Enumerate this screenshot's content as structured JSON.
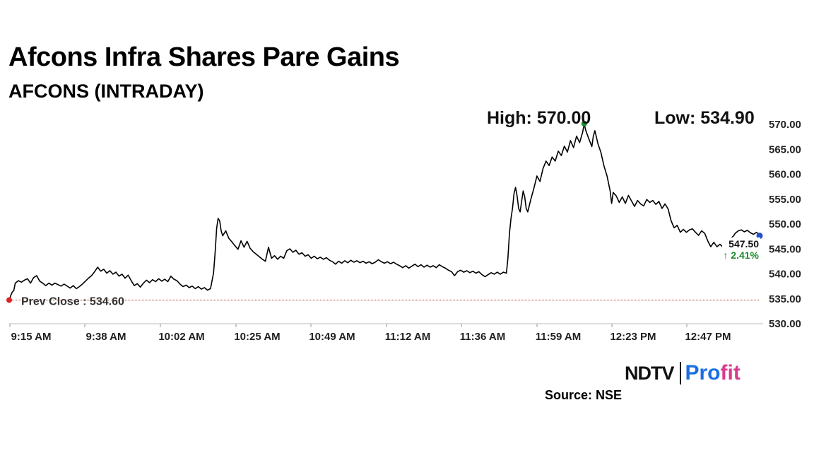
{
  "header": {
    "title": "Afcons Infra Shares Pare Gains",
    "subtitle": "AFCONS (INTRADAY)"
  },
  "chart_data": {
    "type": "line",
    "title": "Afcons Infra Shares Pare Gains",
    "subtitle": "AFCONS (INTRADAY)",
    "xlabel": "",
    "ylabel": "",
    "x_ticks": [
      "9:15 AM",
      "9:38 AM",
      "10:02 AM",
      "10:25 AM",
      "10:49 AM",
      "11:12 AM",
      "11:36 AM",
      "11:59 AM",
      "12:23 PM",
      "12:47 PM"
    ],
    "y_ticks": [
      "530.00",
      "535.00",
      "540.00",
      "545.00",
      "550.00",
      "555.00",
      "560.00",
      "565.00",
      "570.00"
    ],
    "ylim": [
      530,
      570
    ],
    "x_unit": "minutes from 9:15 AM",
    "xlim": [
      0,
      246
    ],
    "grid": false,
    "series": [
      {
        "points": [
          [
            0,
            534.6
          ],
          [
            0.5,
            535.5
          ],
          [
            1,
            536.2
          ],
          [
            1.5,
            536.5
          ],
          [
            2,
            538.0
          ],
          [
            3,
            538.5
          ],
          [
            4,
            538.2
          ],
          [
            5,
            538.6
          ],
          [
            6,
            538.9
          ],
          [
            7,
            538.0
          ],
          [
            8,
            539.1
          ],
          [
            9,
            539.5
          ],
          [
            10,
            538.4
          ],
          [
            11,
            538.0
          ],
          [
            12,
            537.5
          ],
          [
            13,
            538.0
          ],
          [
            14,
            537.6
          ],
          [
            15,
            538.0
          ],
          [
            17,
            537.4
          ],
          [
            18,
            537.8
          ],
          [
            20,
            537.0
          ],
          [
            21,
            537.5
          ],
          [
            22,
            536.9
          ],
          [
            23,
            537.3
          ],
          [
            24,
            537.8
          ],
          [
            25,
            538.4
          ],
          [
            26,
            539.0
          ],
          [
            27,
            539.5
          ],
          [
            28,
            540.3
          ],
          [
            29,
            541.2
          ],
          [
            30,
            540.4
          ],
          [
            31,
            540.8
          ],
          [
            32,
            540.0
          ],
          [
            33,
            540.5
          ],
          [
            34,
            539.8
          ],
          [
            35,
            540.2
          ],
          [
            36,
            539.4
          ],
          [
            37,
            539.8
          ],
          [
            38,
            539.0
          ],
          [
            39,
            539.6
          ],
          [
            40,
            538.5
          ],
          [
            41,
            537.5
          ],
          [
            42,
            537.9
          ],
          [
            43,
            537.2
          ],
          [
            44,
            538.0
          ],
          [
            45,
            538.6
          ],
          [
            46,
            538.1
          ],
          [
            47,
            538.7
          ],
          [
            48,
            538.3
          ],
          [
            49,
            538.9
          ],
          [
            50,
            538.4
          ],
          [
            51,
            538.8
          ],
          [
            52,
            538.3
          ],
          [
            53,
            539.4
          ],
          [
            54,
            538.8
          ],
          [
            55,
            538.5
          ],
          [
            56,
            537.8
          ],
          [
            57,
            537.3
          ],
          [
            58,
            537.6
          ],
          [
            59,
            537.1
          ],
          [
            60,
            537.4
          ],
          [
            61,
            536.9
          ],
          [
            62,
            537.3
          ],
          [
            63,
            536.8
          ],
          [
            64,
            537.1
          ],
          [
            65,
            536.6
          ],
          [
            66,
            536.9
          ],
          [
            67,
            540.0
          ],
          [
            67.5,
            544.0
          ],
          [
            68,
            549.0
          ],
          [
            68.5,
            551.0
          ],
          [
            69,
            550.5
          ],
          [
            69.5,
            548.5
          ],
          [
            70,
            547.5
          ],
          [
            71,
            548.5
          ],
          [
            72,
            547.0
          ],
          [
            73,
            546.3
          ],
          [
            74,
            545.5
          ],
          [
            75,
            544.8
          ],
          [
            76,
            546.5
          ],
          [
            77,
            545.2
          ],
          [
            78,
            546.4
          ],
          [
            79,
            545.0
          ],
          [
            80,
            544.3
          ],
          [
            81,
            543.8
          ],
          [
            82,
            543.3
          ],
          [
            83,
            542.8
          ],
          [
            84,
            542.4
          ],
          [
            85,
            545.2
          ],
          [
            86,
            543.0
          ],
          [
            87,
            543.5
          ],
          [
            88,
            542.8
          ],
          [
            89,
            543.4
          ],
          [
            90,
            543.0
          ],
          [
            91,
            544.5
          ],
          [
            92,
            544.9
          ],
          [
            93,
            544.2
          ],
          [
            94,
            544.6
          ],
          [
            95,
            543.8
          ],
          [
            96,
            544.1
          ],
          [
            97,
            543.4
          ],
          [
            98,
            543.7
          ],
          [
            99,
            543.0
          ],
          [
            100,
            543.4
          ],
          [
            101,
            542.9
          ],
          [
            102,
            543.2
          ],
          [
            103,
            542.8
          ],
          [
            104,
            543.1
          ],
          [
            105,
            542.6
          ],
          [
            106,
            542.3
          ],
          [
            107,
            541.8
          ],
          [
            108,
            542.4
          ],
          [
            109,
            542.0
          ],
          [
            110,
            542.5
          ],
          [
            111,
            542.1
          ],
          [
            112,
            542.6
          ],
          [
            113,
            542.2
          ],
          [
            114,
            542.5
          ],
          [
            115,
            542.1
          ],
          [
            116,
            542.4
          ],
          [
            117,
            542.0
          ],
          [
            118,
            542.3
          ],
          [
            119,
            541.9
          ],
          [
            120,
            542.2
          ],
          [
            121,
            542.7
          ],
          [
            122,
            542.3
          ],
          [
            123,
            542.0
          ],
          [
            124,
            542.3
          ],
          [
            125,
            541.9
          ],
          [
            126,
            542.2
          ],
          [
            127,
            541.8
          ],
          [
            128,
            541.5
          ],
          [
            129,
            541.1
          ],
          [
            130,
            541.5
          ],
          [
            131,
            541.0
          ],
          [
            132,
            541.4
          ],
          [
            133,
            541.8
          ],
          [
            134,
            541.3
          ],
          [
            135,
            541.7
          ],
          [
            136,
            541.2
          ],
          [
            137,
            541.6
          ],
          [
            138,
            541.2
          ],
          [
            139,
            541.5
          ],
          [
            140,
            541.1
          ],
          [
            141,
            541.7
          ],
          [
            142,
            541.3
          ],
          [
            143,
            541.0
          ],
          [
            144,
            540.6
          ],
          [
            145,
            540.3
          ],
          [
            146,
            539.5
          ],
          [
            147,
            540.3
          ],
          [
            148,
            540.6
          ],
          [
            149,
            540.2
          ],
          [
            150,
            540.5
          ],
          [
            151,
            540.1
          ],
          [
            152,
            540.4
          ],
          [
            153,
            540.0
          ],
          [
            154,
            540.3
          ],
          [
            155,
            539.7
          ],
          [
            156,
            539.3
          ],
          [
            157,
            539.7
          ],
          [
            158,
            540.1
          ],
          [
            159,
            539.8
          ],
          [
            160,
            540.2
          ],
          [
            161,
            539.8
          ],
          [
            162,
            540.2
          ],
          [
            163,
            540.0
          ],
          [
            163.5,
            543.0
          ],
          [
            164,
            548.0
          ],
          [
            164.5,
            551.0
          ],
          [
            165,
            553.0
          ],
          [
            165.5,
            556.0
          ],
          [
            166,
            557.2
          ],
          [
            166.5,
            555.5
          ],
          [
            167,
            553.0
          ],
          [
            167.5,
            552.3
          ],
          [
            168,
            554.5
          ],
          [
            168.5,
            556.5
          ],
          [
            169,
            555.3
          ],
          [
            169.5,
            553.0
          ],
          [
            170,
            552.3
          ],
          [
            171,
            554.8
          ],
          [
            172,
            557.0
          ],
          [
            173,
            559.5
          ],
          [
            174,
            558.4
          ],
          [
            175,
            561.0
          ],
          [
            176,
            562.5
          ],
          [
            177,
            561.6
          ],
          [
            178,
            563.3
          ],
          [
            179,
            562.5
          ],
          [
            180,
            564.5
          ],
          [
            181,
            563.6
          ],
          [
            182,
            565.5
          ],
          [
            183,
            564.3
          ],
          [
            184,
            566.6
          ],
          [
            185,
            565.2
          ],
          [
            186,
            567.5
          ],
          [
            187,
            566.2
          ],
          [
            188,
            568.3
          ],
          [
            188.5,
            570.0
          ],
          [
            189,
            568.7
          ],
          [
            190,
            567.0
          ],
          [
            191,
            565.4
          ],
          [
            191.5,
            567.5
          ],
          [
            192,
            568.6
          ],
          [
            193,
            566.0
          ],
          [
            194,
            564.2
          ],
          [
            195,
            561.5
          ],
          [
            196,
            559.5
          ],
          [
            197,
            556.5
          ],
          [
            197.5,
            554.0
          ],
          [
            198,
            556.2
          ],
          [
            199,
            555.5
          ],
          [
            200,
            554.2
          ],
          [
            201,
            555.3
          ],
          [
            202,
            554.0
          ],
          [
            203,
            555.6
          ],
          [
            204,
            554.5
          ],
          [
            205,
            553.4
          ],
          [
            206,
            554.6
          ],
          [
            207,
            553.9
          ],
          [
            208,
            553.5
          ],
          [
            209,
            554.8
          ],
          [
            210,
            554.2
          ],
          [
            211,
            554.6
          ],
          [
            212,
            553.8
          ],
          [
            213,
            554.4
          ],
          [
            214,
            553.0
          ],
          [
            215,
            553.9
          ],
          [
            216,
            552.9
          ],
          [
            217,
            550.5
          ],
          [
            218,
            549.1
          ],
          [
            219,
            549.6
          ],
          [
            220,
            548.2
          ],
          [
            221,
            548.8
          ],
          [
            222,
            548.2
          ],
          [
            223,
            548.7
          ],
          [
            224,
            548.9
          ],
          [
            225,
            548.2
          ],
          [
            226,
            547.6
          ],
          [
            227,
            548.5
          ],
          [
            228,
            548.0
          ],
          [
            229,
            546.5
          ],
          [
            230,
            545.3
          ],
          [
            231,
            546.2
          ],
          [
            232,
            545.3
          ],
          [
            233,
            545.8
          ],
          [
            234,
            545.2
          ],
          [
            235,
            545.7
          ],
          [
            236,
            545.1
          ],
          [
            236.5,
            546.0
          ],
          [
            237,
            547.2
          ],
          [
            237.5,
            547.5
          ],
          [
            238,
            548.0
          ],
          [
            239,
            548.5
          ],
          [
            240,
            548.7
          ],
          [
            241,
            548.3
          ],
          [
            242,
            548.6
          ],
          [
            243,
            548.1
          ],
          [
            244,
            547.8
          ],
          [
            245,
            548.2
          ],
          [
            246,
            547.5
          ]
        ]
      }
    ],
    "annotations": {
      "high_label": "High: 570.00",
      "low_label": "Low: 534.90",
      "prev_close_label": "Prev Close : 534.60",
      "prev_close_value": 534.6,
      "high_point": [
        188.5,
        570.0
      ],
      "last_price_label": "547.50",
      "last_change_label": "↑ 2.41%",
      "last_point": [
        246,
        547.5
      ]
    },
    "colors": {
      "line": "#000000",
      "prev_close_line": "#c0392b",
      "start_marker": "#e02020",
      "high_marker": "#1c8c2e",
      "last_marker": "#2450c8",
      "change_positive": "#1c8c2e",
      "axis": "#888888"
    }
  },
  "footer": {
    "brand_ndtv": "NDTV",
    "brand_profit_a": "Pro",
    "brand_profit_b": "fit",
    "source": "Source: NSE"
  }
}
